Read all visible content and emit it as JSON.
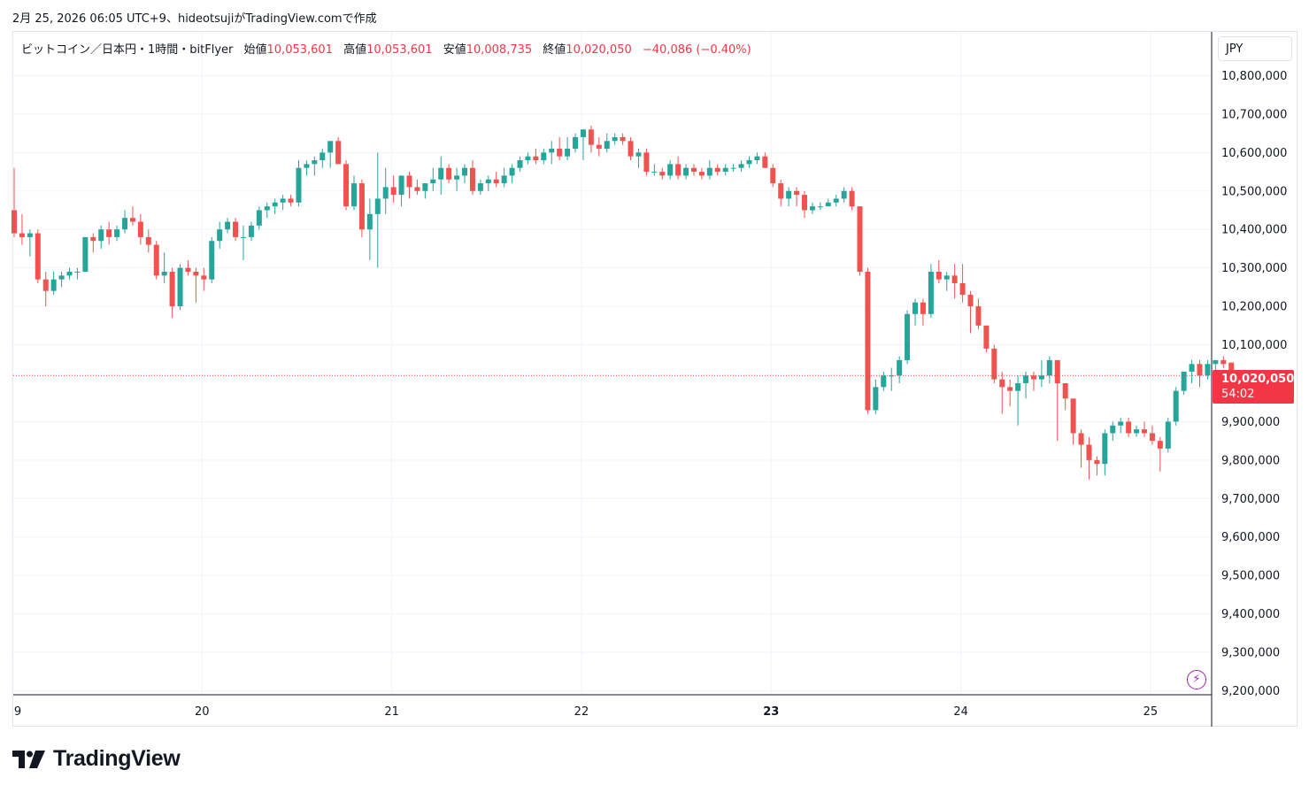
{
  "header": {
    "caption": "2月 25, 2026 06:05 UTC+9、hideotsujiがTradingView.comで作成"
  },
  "legend": {
    "symbol": "ビットコイン／日本円・1時間・bitFlyer",
    "open_label": "始値",
    "open_value": "10,053,601",
    "high_label": "高値",
    "high_value": "10,053,601",
    "low_label": "安値",
    "low_value": "10,008,735",
    "close_label": "終値",
    "close_value": "10,020,050",
    "change": "−40,086 (−0.40%)"
  },
  "currency": "JPY",
  "price_tag": {
    "price": "10,020,050",
    "countdown": "54:02"
  },
  "branding": {
    "logo_text": "TradingView"
  },
  "colors": {
    "up": "#26a69a",
    "down": "#ef5350",
    "grid": "#f0f3fa",
    "price_line": "#f23645",
    "accent": "#9c27b0"
  },
  "chart_data": {
    "type": "candlestick",
    "title": "ビットコイン／日本円・1時間・bitFlyer",
    "interval": "1時間",
    "currency": "JPY",
    "ylim": [
      9200000,
      10900000
    ],
    "y_ticks": [
      10800000,
      10700000,
      10600000,
      10500000,
      10400000,
      10300000,
      10200000,
      10100000,
      9900000,
      9800000,
      9700000,
      9600000,
      9500000,
      9400000,
      9300000,
      9200000
    ],
    "y_tick_labels": [
      "10,800,000",
      "10,700,000",
      "10,600,000",
      "10,500,000",
      "10,400,000",
      "10,300,000",
      "10,200,000",
      "10,100,000",
      "9,900,000",
      "9,800,000",
      "9,700,000",
      "9,600,000",
      "9,500,000",
      "9,400,000",
      "9,300,000",
      "9,200,000"
    ],
    "x_tick_labels": [
      {
        "label": "9",
        "hours_from_start": 0,
        "bold": false
      },
      {
        "label": "20",
        "hours_from_start": 24,
        "bold": false
      },
      {
        "label": "21",
        "hours_from_start": 48,
        "bold": false
      },
      {
        "label": "22",
        "hours_from_start": 72,
        "bold": false
      },
      {
        "label": "23",
        "hours_from_start": 96,
        "bold": true
      },
      {
        "label": "24",
        "hours_from_start": 120,
        "bold": false
      },
      {
        "label": "25",
        "hours_from_start": 144,
        "bold": false
      }
    ],
    "last_price": 10020050,
    "candles": [
      [
        10450000,
        10560000,
        10380000,
        10390000
      ],
      [
        10390000,
        10440000,
        10360000,
        10380000
      ],
      [
        10380000,
        10400000,
        10330000,
        10390000
      ],
      [
        10390000,
        10400000,
        10260000,
        10270000
      ],
      [
        10270000,
        10290000,
        10200000,
        10240000
      ],
      [
        10240000,
        10290000,
        10230000,
        10270000
      ],
      [
        10270000,
        10290000,
        10250000,
        10280000
      ],
      [
        10280000,
        10300000,
        10270000,
        10290000
      ],
      [
        10290000,
        10300000,
        10270000,
        10290000
      ],
      [
        10290000,
        10380000,
        10290000,
        10380000
      ],
      [
        10380000,
        10390000,
        10340000,
        10370000
      ],
      [
        10370000,
        10410000,
        10350000,
        10400000
      ],
      [
        10400000,
        10420000,
        10360000,
        10380000
      ],
      [
        10380000,
        10410000,
        10370000,
        10400000
      ],
      [
        10400000,
        10450000,
        10390000,
        10430000
      ],
      [
        10430000,
        10460000,
        10410000,
        10420000
      ],
      [
        10420000,
        10440000,
        10360000,
        10380000
      ],
      [
        10380000,
        10400000,
        10340000,
        10360000
      ],
      [
        10360000,
        10370000,
        10270000,
        10280000
      ],
      [
        10280000,
        10340000,
        10260000,
        10290000
      ],
      [
        10290000,
        10300000,
        10170000,
        10200000
      ],
      [
        10200000,
        10310000,
        10190000,
        10300000
      ],
      [
        10300000,
        10320000,
        10280000,
        10290000
      ],
      [
        10290000,
        10300000,
        10210000,
        10280000
      ],
      [
        10280000,
        10300000,
        10240000,
        10270000
      ],
      [
        10270000,
        10380000,
        10260000,
        10370000
      ],
      [
        10370000,
        10420000,
        10350000,
        10400000
      ],
      [
        10400000,
        10430000,
        10390000,
        10420000
      ],
      [
        10420000,
        10430000,
        10370000,
        10380000
      ],
      [
        10380000,
        10410000,
        10320000,
        10380000
      ],
      [
        10380000,
        10420000,
        10370000,
        10410000
      ],
      [
        10410000,
        10460000,
        10400000,
        10450000
      ],
      [
        10450000,
        10470000,
        10430000,
        10460000
      ],
      [
        10460000,
        10480000,
        10440000,
        10470000
      ],
      [
        10470000,
        10490000,
        10450000,
        10480000
      ],
      [
        10480000,
        10490000,
        10460000,
        10470000
      ],
      [
        10470000,
        10580000,
        10460000,
        10560000
      ],
      [
        10560000,
        10580000,
        10540000,
        10570000
      ],
      [
        10570000,
        10590000,
        10540000,
        10580000
      ],
      [
        10580000,
        10610000,
        10560000,
        10600000
      ],
      [
        10600000,
        10620000,
        10560000,
        10630000
      ],
      [
        10630000,
        10640000,
        10570000,
        10570000
      ],
      [
        10570000,
        10580000,
        10450000,
        10460000
      ],
      [
        10460000,
        10540000,
        10450000,
        10520000
      ],
      [
        10520000,
        10530000,
        10380000,
        10400000
      ],
      [
        10400000,
        10480000,
        10320000,
        10440000
      ],
      [
        10440000,
        10600000,
        10300000,
        10480000
      ],
      [
        10480000,
        10560000,
        10440000,
        10510000
      ],
      [
        10510000,
        10540000,
        10470000,
        10490000
      ],
      [
        10490000,
        10530000,
        10460000,
        10540000
      ],
      [
        10540000,
        10550000,
        10480000,
        10510000
      ],
      [
        10510000,
        10530000,
        10490000,
        10500000
      ],
      [
        10500000,
        10520000,
        10480000,
        10520000
      ],
      [
        10520000,
        10560000,
        10500000,
        10530000
      ],
      [
        10530000,
        10590000,
        10490000,
        10560000
      ],
      [
        10560000,
        10570000,
        10520000,
        10530000
      ],
      [
        10530000,
        10560000,
        10500000,
        10540000
      ],
      [
        10540000,
        10570000,
        10520000,
        10560000
      ],
      [
        10560000,
        10580000,
        10490000,
        10500000
      ],
      [
        10500000,
        10530000,
        10490000,
        10520000
      ],
      [
        10520000,
        10540000,
        10500000,
        10530000
      ],
      [
        10530000,
        10550000,
        10510000,
        10520000
      ],
      [
        10520000,
        10560000,
        10510000,
        10540000
      ],
      [
        10540000,
        10570000,
        10520000,
        10560000
      ],
      [
        10560000,
        10590000,
        10550000,
        10580000
      ],
      [
        10580000,
        10600000,
        10570000,
        10590000
      ],
      [
        10590000,
        10610000,
        10570000,
        10580000
      ],
      [
        10580000,
        10610000,
        10570000,
        10600000
      ],
      [
        10600000,
        10630000,
        10570000,
        10610000
      ],
      [
        10610000,
        10640000,
        10580000,
        10590000
      ],
      [
        10590000,
        10640000,
        10580000,
        10610000
      ],
      [
        10610000,
        10650000,
        10600000,
        10640000
      ],
      [
        10640000,
        10660000,
        10580000,
        10660000
      ],
      [
        10660000,
        10670000,
        10600000,
        10620000
      ],
      [
        10620000,
        10640000,
        10590000,
        10610000
      ],
      [
        10610000,
        10650000,
        10600000,
        10630000
      ],
      [
        10630000,
        10650000,
        10620000,
        10640000
      ],
      [
        10640000,
        10650000,
        10620000,
        10630000
      ],
      [
        10630000,
        10640000,
        10580000,
        10590000
      ],
      [
        10590000,
        10610000,
        10560000,
        10600000
      ],
      [
        10600000,
        10610000,
        10540000,
        10550000
      ],
      [
        10550000,
        10570000,
        10540000,
        10550000
      ],
      [
        10550000,
        10560000,
        10530000,
        10540000
      ],
      [
        10540000,
        10580000,
        10530000,
        10570000
      ],
      [
        10570000,
        10590000,
        10530000,
        10540000
      ],
      [
        10540000,
        10570000,
        10530000,
        10560000
      ],
      [
        10560000,
        10570000,
        10540000,
        10550000
      ],
      [
        10550000,
        10560000,
        10530000,
        10540000
      ],
      [
        10540000,
        10580000,
        10530000,
        10560000
      ],
      [
        10560000,
        10570000,
        10540000,
        10550000
      ],
      [
        10550000,
        10570000,
        10540000,
        10560000
      ],
      [
        10560000,
        10570000,
        10550000,
        10560000
      ],
      [
        10560000,
        10580000,
        10550000,
        10570000
      ],
      [
        10570000,
        10590000,
        10560000,
        10580000
      ],
      [
        10580000,
        10600000,
        10570000,
        10590000
      ],
      [
        10590000,
        10600000,
        10560000,
        10560000
      ],
      [
        10560000,
        10570000,
        10510000,
        10520000
      ],
      [
        10520000,
        10530000,
        10460000,
        10480000
      ],
      [
        10480000,
        10510000,
        10460000,
        10500000
      ],
      [
        10500000,
        10510000,
        10460000,
        10490000
      ],
      [
        10490000,
        10500000,
        10430000,
        10450000
      ],
      [
        10450000,
        10470000,
        10440000,
        10460000
      ],
      [
        10460000,
        10470000,
        10450000,
        10460000
      ],
      [
        10460000,
        10480000,
        10460000,
        10470000
      ],
      [
        10470000,
        10490000,
        10460000,
        10480000
      ],
      [
        10480000,
        10510000,
        10470000,
        10500000
      ],
      [
        10500000,
        10510000,
        10450000,
        10460000
      ],
      [
        10460000,
        10460000,
        10280000,
        10290000
      ],
      [
        10290000,
        10300000,
        9920000,
        9930000
      ],
      [
        9930000,
        10010000,
        9920000,
        9990000
      ],
      [
        9990000,
        10030000,
        9980000,
        10020000
      ],
      [
        10020000,
        10040000,
        9980000,
        10020000
      ],
      [
        10020000,
        10070000,
        10000000,
        10060000
      ],
      [
        10060000,
        10190000,
        10050000,
        10180000
      ],
      [
        10180000,
        10220000,
        10150000,
        10210000
      ],
      [
        10210000,
        10220000,
        10150000,
        10180000
      ],
      [
        10180000,
        10310000,
        10170000,
        10290000
      ],
      [
        10290000,
        10320000,
        10260000,
        10270000
      ],
      [
        10270000,
        10290000,
        10240000,
        10280000
      ],
      [
        10280000,
        10310000,
        10220000,
        10260000
      ],
      [
        10260000,
        10310000,
        10210000,
        10230000
      ],
      [
        10230000,
        10240000,
        10130000,
        10200000
      ],
      [
        10200000,
        10220000,
        10140000,
        10150000
      ],
      [
        10150000,
        10150000,
        10080000,
        10090000
      ],
      [
        10090000,
        10100000,
        10000000,
        10010000
      ],
      [
        10010000,
        10030000,
        9920000,
        9990000
      ],
      [
        9990000,
        10010000,
        9940000,
        9980000
      ],
      [
        9980000,
        10020000,
        9890000,
        10000000
      ],
      [
        10000000,
        10030000,
        9960000,
        10020000
      ],
      [
        10020000,
        10030000,
        9980000,
        10010000
      ],
      [
        10010000,
        10060000,
        9990000,
        10020000
      ],
      [
        10020000,
        10070000,
        10000000,
        10060000
      ],
      [
        10060000,
        10060000,
        9850000,
        10000000
      ],
      [
        10000000,
        10000000,
        9930000,
        9960000
      ],
      [
        9960000,
        9960000,
        9840000,
        9870000
      ],
      [
        9870000,
        9880000,
        9780000,
        9840000
      ],
      [
        9840000,
        9860000,
        9750000,
        9800000
      ],
      [
        9800000,
        9810000,
        9760000,
        9790000
      ],
      [
        9790000,
        9880000,
        9760000,
        9870000
      ],
      [
        9870000,
        9900000,
        9850000,
        9890000
      ],
      [
        9890000,
        9910000,
        9870000,
        9900000
      ],
      [
        9900000,
        9910000,
        9860000,
        9870000
      ],
      [
        9870000,
        9890000,
        9860000,
        9880000
      ],
      [
        9880000,
        9900000,
        9860000,
        9870000
      ],
      [
        9870000,
        9890000,
        9840000,
        9850000
      ],
      [
        9850000,
        9860000,
        9770000,
        9830000
      ],
      [
        9830000,
        9910000,
        9820000,
        9900000
      ],
      [
        9900000,
        9990000,
        9890000,
        9980000
      ],
      [
        9980000,
        10030000,
        9970000,
        10030000
      ],
      [
        10030000,
        10060000,
        10000000,
        10050000
      ],
      [
        10050000,
        10060000,
        9990000,
        10020000
      ],
      [
        10020000,
        10060000,
        10010000,
        10050000
      ],
      [
        10050000,
        10060000,
        10030000,
        10060000
      ],
      [
        10060000,
        10070000,
        10040000,
        10050000
      ],
      [
        10053601,
        10053601,
        10008735,
        10020050
      ]
    ]
  }
}
